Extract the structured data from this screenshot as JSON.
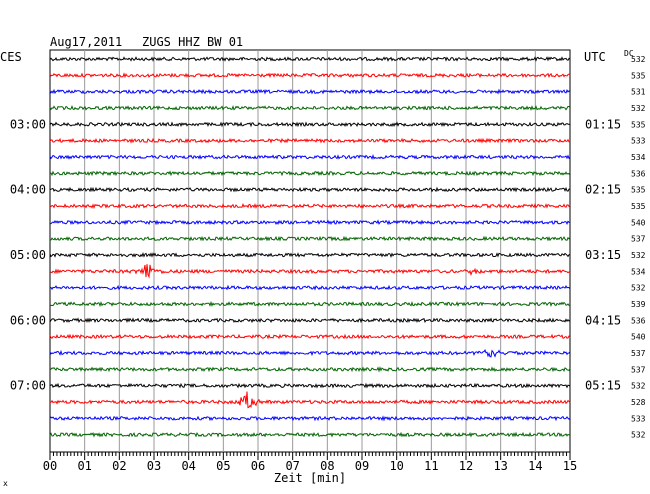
{
  "header": {
    "date": "Aug17,2011",
    "station": "ZUGS HHZ BW 01",
    "left_tz": "CES",
    "right_tz": "UTC",
    "dc_label": "DC"
  },
  "colors": {
    "trace_cycle": [
      "#000000",
      "#ff0000",
      "#0000ff",
      "#006400"
    ],
    "grid": "#999999"
  },
  "chart_data": {
    "type": "line",
    "title": "Aug17,2011   ZUGS HHZ BW 01",
    "xlabel": "Zeit [min]",
    "xlim": [
      0,
      15
    ],
    "x_ticks": [
      "00",
      "01",
      "02",
      "03",
      "04",
      "05",
      "06",
      "07",
      "08",
      "09",
      "10",
      "11",
      "12",
      "13",
      "14",
      "15"
    ],
    "left_time_labels": [
      {
        "row": 4,
        "text": "03:00"
      },
      {
        "row": 8,
        "text": "04:00"
      },
      {
        "row": 12,
        "text": "05:00"
      },
      {
        "row": 16,
        "text": "06:00"
      },
      {
        "row": 20,
        "text": "07:00"
      }
    ],
    "right_time_labels": [
      {
        "row": 4,
        "text": "01:15"
      },
      {
        "row": 8,
        "text": "02:15"
      },
      {
        "row": 12,
        "text": "03:15"
      },
      {
        "row": 16,
        "text": "04:15"
      },
      {
        "row": 20,
        "text": "05:15"
      }
    ],
    "dc_offsets": [
      532,
      535,
      531,
      532,
      535,
      533,
      534,
      536,
      535,
      535,
      540,
      537,
      532,
      534,
      532,
      539,
      536,
      540,
      537,
      537,
      532,
      528,
      533,
      532
    ],
    "events": [
      {
        "row": 13,
        "minute": 2.8,
        "color": "#ff0000",
        "amplitude": 1.0
      },
      {
        "row": 13,
        "minute": 12.2,
        "color": "#ff0000",
        "amplitude": 0.25
      },
      {
        "row": 18,
        "minute": 12.7,
        "color": "#0000ff",
        "amplitude": 1.0
      },
      {
        "row": 21,
        "minute": 5.7,
        "color": "#ff0000",
        "amplitude": 1.0
      }
    ]
  }
}
